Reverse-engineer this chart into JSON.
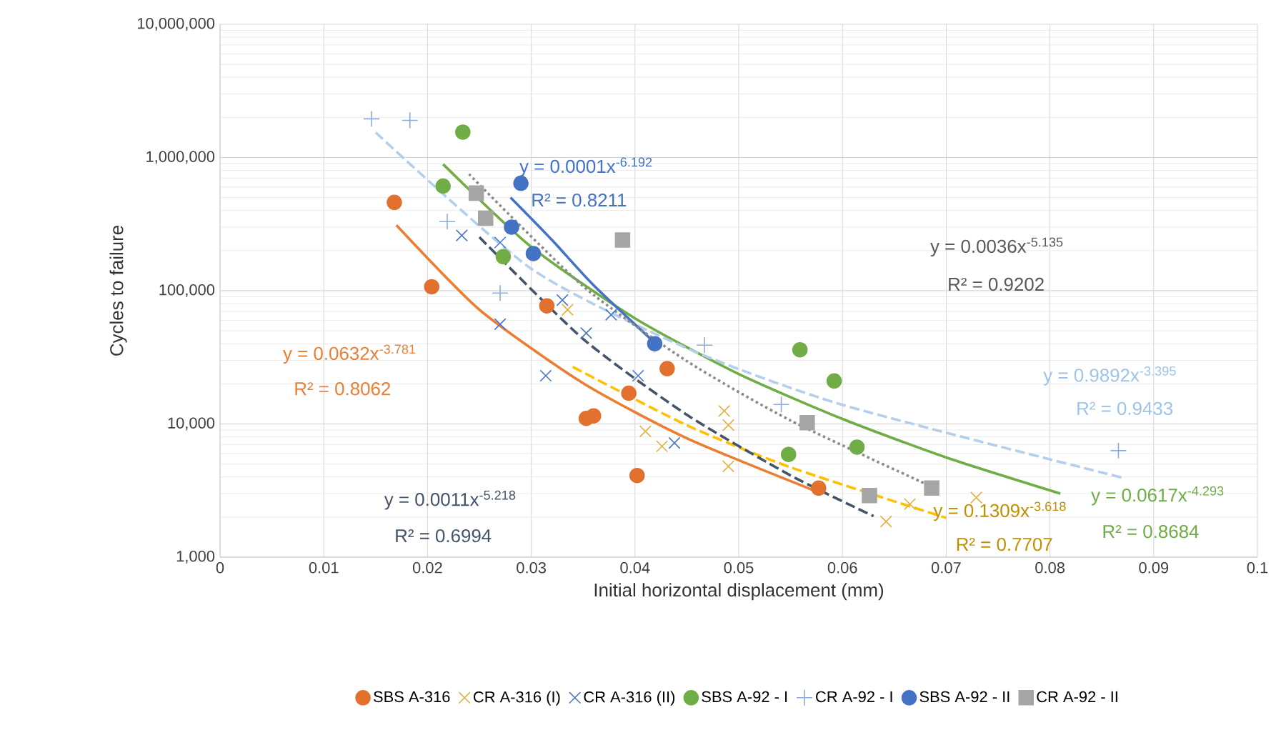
{
  "chart_data": {
    "type": "scatter",
    "xlabel": "Initial horizontal displacement (mm)",
    "ylabel": "Cycles to failure",
    "log": "y",
    "grid": true,
    "legend": "bottom",
    "xlim": [
      0,
      0.1
    ],
    "xticks": [
      0,
      0.01,
      0.02,
      0.03,
      0.04,
      0.05,
      0.06,
      0.07,
      0.08,
      0.09,
      0.1
    ],
    "ylim": [
      1000,
      10000000
    ],
    "yticks": [
      {
        "value": 1000,
        "label": "1,000"
      },
      {
        "value": 10000,
        "label": "10,000"
      },
      {
        "value": 100000,
        "label": "100,000"
      },
      {
        "value": 1000000,
        "label": "1,000,000"
      },
      {
        "value": 10000000,
        "label": "10,000,000"
      }
    ],
    "series": [
      {
        "name": "SBS A-316",
        "color": "#e2702e",
        "marker": "circle",
        "x": [
          0.0168,
          0.0204,
          0.0315,
          0.0353,
          0.036,
          0.0394,
          0.0402,
          0.0431,
          0.0577
        ],
        "values": [
          460000,
          107000,
          77000,
          11000,
          11500,
          17000,
          4100,
          26000,
          3300
        ]
      },
      {
        "name": "CR A-316 (I)",
        "color": "#e6b040",
        "marker": "cross",
        "x": [
          0.0335,
          0.041,
          0.0426,
          0.0486,
          0.049,
          0.049,
          0.0642,
          0.0665,
          0.0729
        ],
        "values": [
          72000,
          8800,
          6800,
          12500,
          9800,
          4800,
          1850,
          2500,
          2800
        ]
      },
      {
        "name": "CR A-316 (II)",
        "color": "#4a78c8",
        "marker": "cross",
        "x": [
          0.0233,
          0.027,
          0.027,
          0.0314,
          0.033,
          0.0353,
          0.0377,
          0.0403,
          0.0438
        ],
        "values": [
          260000,
          230000,
          56000,
          23000,
          85000,
          48000,
          66000,
          23000,
          7200
        ]
      },
      {
        "name": "SBS A-92 - I",
        "color": "#70ad47",
        "marker": "circle",
        "x": [
          0.0215,
          0.0234,
          0.0273,
          0.0548,
          0.0559,
          0.0592,
          0.0614
        ],
        "values": [
          610000,
          1550000,
          180000,
          5900,
          36000,
          21000,
          6700
        ]
      },
      {
        "name": "CR A-92 - I",
        "color": "#8faadc",
        "marker": "plus",
        "x": [
          0.0146,
          0.0183,
          0.0219,
          0.027,
          0.0467,
          0.0541,
          0.0866
        ],
        "values": [
          1950000,
          1900000,
          330000,
          96000,
          39000,
          14000,
          6300
        ]
      },
      {
        "name": "SBS A-92 - II",
        "color": "#4472c4",
        "marker": "circle",
        "x": [
          0.0281,
          0.029,
          0.0302,
          0.0419
        ],
        "values": [
          300000,
          640000,
          190000,
          40000
        ]
      },
      {
        "name": "CR A-92 - II",
        "color": "#a5a5a5",
        "marker": "square",
        "x": [
          0.0247,
          0.0256,
          0.0388,
          0.0566,
          0.0626,
          0.0686
        ],
        "values": [
          540000,
          350000,
          240000,
          10200,
          2900,
          3300
        ]
      },
      {
        "type": "line",
        "color": "#ed7d31",
        "marker": "none",
        "line_style": "solid",
        "x": [
          0.017,
          0.025,
          0.035,
          0.045,
          0.058
        ],
        "values": [
          310000,
          72000,
          20200,
          7800,
          3000
        ]
      },
      {
        "type": "line",
        "color": "#ffc000",
        "marker": "none",
        "line_style": "dashed",
        "x": [
          0.034,
          0.045,
          0.055,
          0.07
        ],
        "values": [
          26800,
          9770,
          4720,
          1970
        ]
      },
      {
        "type": "line",
        "color": "#44546a",
        "marker": "none",
        "line_style": "dashed",
        "x": [
          0.025,
          0.035,
          0.045,
          0.055,
          0.063
        ],
        "values": [
          252000,
          43400,
          11700,
          4100,
          2030
        ]
      },
      {
        "type": "line",
        "color": "#70ad47",
        "marker": "none",
        "line_style": "solid",
        "x": [
          0.0215,
          0.03,
          0.04,
          0.05,
          0.06,
          0.07,
          0.081
        ],
        "values": [
          890000,
          213000,
          62000,
          23700,
          10900,
          5600,
          3000
        ]
      },
      {
        "type": "line",
        "color": "#b4cfeb",
        "marker": "none",
        "line_style": "dashed",
        "x": [
          0.015,
          0.03,
          0.045,
          0.06,
          0.087
        ],
        "values": [
          1540000,
          146000,
          37000,
          13900,
          3940
        ]
      },
      {
        "type": "line",
        "color": "#4472c4",
        "marker": "none",
        "line_style": "solid",
        "x": [
          0.028,
          0.032,
          0.036,
          0.042
        ],
        "values": [
          500000,
          240000,
          110000,
          40000
        ]
      },
      {
        "type": "line",
        "color": "#8c8c8c",
        "marker": "none",
        "line_style": "dotted",
        "x": [
          0.024,
          0.035,
          0.045,
          0.055,
          0.068
        ],
        "values": [
          750000,
          108000,
          29600,
          10600,
          3550
        ]
      }
    ],
    "annotations": [
      "y = 0.0001x$^{-6.192}$",
      "R² = 0.8211",
      "y = 0.0036x$^{-5.135}$",
      "R² = 0.9202",
      "y = 0.0632x$^{-3.781}$",
      "R² = 0.8062",
      "y = 0.9892x$^{-3.395}$",
      "R² = 0.9433",
      "y = 0.0011x$^{-5.218}$",
      "R² = 0.6994",
      "y = 0.1309x$^{-3.618}$",
      "R² = 0.7707",
      "y = 0.0617x$^{-4.293}$",
      "R² = 0.8684"
    ]
  }
}
